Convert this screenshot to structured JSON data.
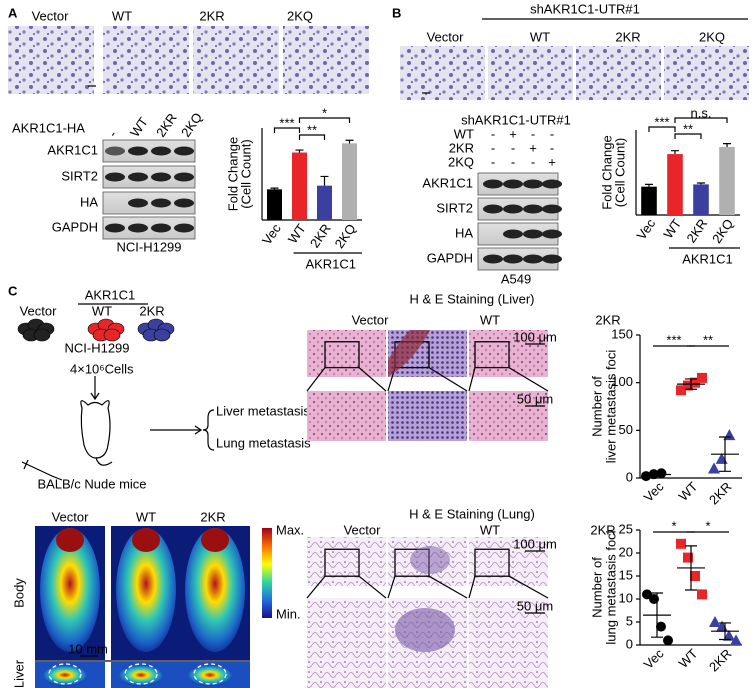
{
  "panels": {
    "A": {
      "label": "A",
      "columns": [
        "Vector",
        "WT",
        "2KR",
        "2KQ"
      ],
      "blot": {
        "header": "AKR1C1-HA",
        "lanes": [
          "-",
          "WT",
          "2KR",
          "2KQ"
        ],
        "rows": [
          "AKR1C1",
          "SIRT2",
          "HA",
          "GAPDH"
        ],
        "cell_line": "NCI-H1299"
      }
    },
    "B": {
      "label": "B",
      "header": "shAKR1C1-UTR#1",
      "columns": [
        "Vector",
        "WT",
        "2KR",
        "2KQ"
      ],
      "blot": {
        "header": "shAKR1C1-UTR#1",
        "treatments": [
          {
            "name": "WT",
            "signs": [
              "-",
              "+",
              "-",
              "-"
            ]
          },
          {
            "name": "2KR",
            "signs": [
              "-",
              "-",
              "+",
              "-"
            ]
          },
          {
            "name": "2KQ",
            "signs": [
              "-",
              "-",
              "-",
              "+"
            ]
          }
        ],
        "rows": [
          "AKR1C1",
          "SIRT2",
          "HA",
          "GAPDH"
        ],
        "cell_line": "A549"
      }
    },
    "C": {
      "label": "C",
      "schematic": {
        "header": "AKR1C1",
        "groups": [
          {
            "name": "Vector",
            "color": "#222222"
          },
          {
            "name": "WT",
            "color": "#e8262a"
          },
          {
            "name": "2KR",
            "color": "#3a3fa0"
          }
        ],
        "cell_line": "NCI-H1299",
        "injection": "4×10⁶Cells",
        "outcomes": [
          "Liver metastasis",
          "Lung metastasis"
        ],
        "mice": "BALB/c Nude mice"
      },
      "liver_he": {
        "title": "H & E Staining (Liver)",
        "columns": [
          {
            "name": "Vector",
            "color": "#222222"
          },
          {
            "name": "WT",
            "color": "#e8262a"
          },
          {
            "name": "2KR",
            "color": "#3a3fa0"
          }
        ],
        "scales": [
          "100 μm",
          "50 μm"
        ]
      },
      "imaging": {
        "columns": [
          {
            "name": "Vector",
            "color": "#222222"
          },
          {
            "name": "WT",
            "color": "#e8262a"
          },
          {
            "name": "2KR",
            "color": "#3a3fa0"
          }
        ],
        "rows": [
          "Body",
          "Liver"
        ],
        "colorbar": [
          "Max.",
          "Min."
        ],
        "scale": "10 mm"
      },
      "lung_he": {
        "title": "H & E Staining (Lung)",
        "columns": [
          {
            "name": "Vector",
            "color": "#222222"
          },
          {
            "name": "WT",
            "color": "#e8262a"
          },
          {
            "name": "2KR",
            "color": "#3a3fa0"
          }
        ],
        "scales": [
          "100 μm",
          "50 μm"
        ]
      }
    }
  },
  "chart_data": [
    {
      "type": "bar",
      "ylabel": [
        "Fold Change",
        "(Cell Count)"
      ],
      "categories": [
        "Vec",
        "WT",
        "2KR",
        "2KQ"
      ],
      "values": [
        1,
        2.2,
        1.12,
        2.5
      ],
      "errors": [
        0.04,
        0.08,
        0.3,
        0.1
      ],
      "colors": [
        "#000000",
        "#e8262a",
        "#3a3fa0",
        "#b0b0b0"
      ],
      "ylim": [
        0,
        3
      ],
      "group_label": "AKR1C1",
      "significance": [
        "***",
        "**",
        "*"
      ]
    },
    {
      "type": "bar",
      "ylabel": [
        "Fold Change",
        "(Cell Count)"
      ],
      "categories": [
        "Vec",
        "WT",
        "2KR",
        "2KQ"
      ],
      "values": [
        1,
        2.15,
        1.08,
        2.4
      ],
      "errors": [
        0.08,
        0.12,
        0.05,
        0.12
      ],
      "colors": [
        "#000000",
        "#e8262a",
        "#3a3fa0",
        "#b0b0b0"
      ],
      "ylim": [
        0,
        3
      ],
      "group_label": "AKR1C1",
      "significance": [
        "***",
        "**",
        "n.s."
      ]
    },
    {
      "type": "dot",
      "ylabel": [
        "Number of",
        "liver metastasis foci"
      ],
      "series": [
        {
          "name": "Vec",
          "color": "#000000",
          "marker": "circle",
          "values": [
            2,
            4,
            5
          ],
          "mean": 3.7,
          "sd": 1.5
        },
        {
          "name": "WT",
          "color": "#e8262a",
          "marker": "square",
          "values": [
            92,
            97,
            100,
            105
          ],
          "mean": 98.5,
          "sd": 5.4
        },
        {
          "name": "2KR",
          "color": "#3a3fa0",
          "marker": "triangle",
          "values": [
            10,
            20,
            45
          ],
          "mean": 25,
          "sd": 18
        }
      ],
      "ylim": [
        0,
        150
      ],
      "yticks": [
        0,
        50,
        100,
        150
      ],
      "significance": [
        "***",
        "**"
      ]
    },
    {
      "type": "dot",
      "ylabel": [
        "Number of",
        "lung metastasis foci"
      ],
      "series": [
        {
          "name": "Vec",
          "color": "#000000",
          "marker": "circle",
          "values": [
            11,
            10,
            4,
            1
          ],
          "mean": 6.5,
          "sd": 4.8
        },
        {
          "name": "WT",
          "color": "#e8262a",
          "marker": "square",
          "values": [
            22,
            19,
            15,
            11
          ],
          "mean": 16.75,
          "sd": 4.8
        },
        {
          "name": "2KR",
          "color": "#3a3fa0",
          "marker": "triangle",
          "values": [
            5,
            4,
            2,
            1
          ],
          "mean": 3,
          "sd": 1.8
        }
      ],
      "ylim": [
        0,
        25
      ],
      "yticks": [
        0,
        5,
        10,
        15,
        20,
        25
      ],
      "significance": [
        "*",
        "*"
      ]
    }
  ]
}
